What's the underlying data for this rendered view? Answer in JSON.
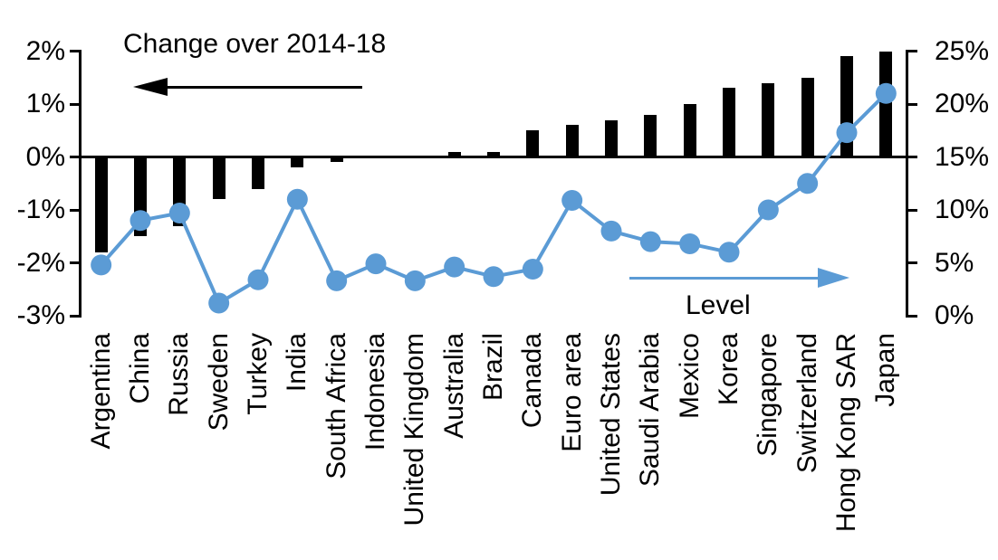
{
  "chart_data": {
    "type": "combo-bar-line-dual-axis",
    "title": "Change over 2014-18",
    "categories": [
      "Argentina",
      "China",
      "Russia",
      "Sweden",
      "Turkey",
      "India",
      "South Africa",
      "Indonesia",
      "United Kingdom",
      "Australia",
      "Brazil",
      "Canada",
      "Euro area",
      "United States",
      "Saudi Arabia",
      "Mexico",
      "Korea",
      "Singapore",
      "Switzerland",
      "Hong Kong SAR",
      "Japan"
    ],
    "series": [
      {
        "name": "Change over 2014-18",
        "type": "bar",
        "axis": "left",
        "color": "#000000",
        "values": [
          -1.8,
          -1.5,
          -1.3,
          -0.8,
          -0.6,
          -0.2,
          -0.1,
          0,
          0,
          0.1,
          0.1,
          0.5,
          0.6,
          0.7,
          0.8,
          1.0,
          1.3,
          1.4,
          1.5,
          1.9,
          2.0
        ]
      },
      {
        "name": "Level",
        "type": "line",
        "axis": "right",
        "color": "#5b9bd5",
        "values": [
          4.8,
          9.0,
          9.7,
          1.2,
          3.4,
          11.0,
          3.3,
          4.9,
          3.3,
          4.6,
          3.7,
          4.4,
          10.9,
          8.0,
          7.0,
          6.8,
          6.0,
          10.0,
          12.5,
          17.3,
          21.0
        ]
      }
    ],
    "left_axis": {
      "tick_labels": [
        "2%",
        "1%",
        "0%",
        "-1%",
        "-2%",
        "-3%"
      ],
      "range": [
        -3,
        2
      ],
      "grid": false
    },
    "right_axis": {
      "tick_labels": [
        "25%",
        "20%",
        "15%",
        "10%",
        "5%",
        "0%"
      ],
      "range": [
        0,
        25
      ],
      "grid": false
    },
    "annotations": [
      {
        "text": "Change over 2014-18",
        "arrow_direction": "left",
        "color": "#000000"
      },
      {
        "text": "Level",
        "arrow_direction": "right",
        "color": "#5b9bd5"
      }
    ],
    "legend_position": "none",
    "baseline_left_value": 0,
    "baseline_right_value": 15
  }
}
